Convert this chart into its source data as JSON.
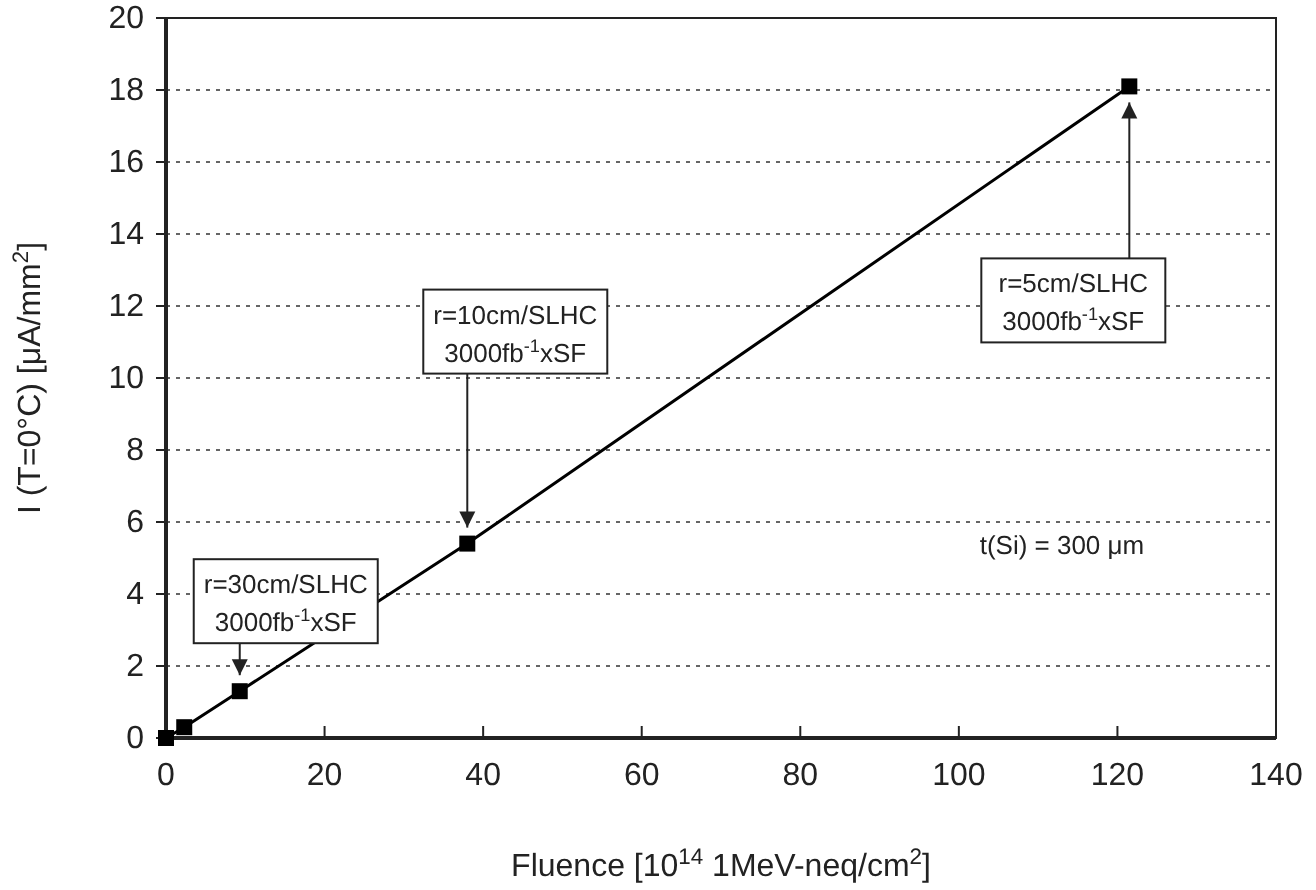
{
  "chart_data": {
    "type": "line",
    "xlabel": "Fluence [10$^{14}$ 1MeV-neq/cm$^{2}$]",
    "ylabel": "I (T=0°C) [μA/mm$^{2}$]",
    "x": [
      0,
      2.3,
      9.3,
      38,
      121.5
    ],
    "series": [
      {
        "color": "#000000",
        "values": [
          0,
          0.3,
          1.3,
          5.4,
          18.1
        ]
      }
    ],
    "xlim": [
      0,
      140
    ],
    "xticks": [
      0,
      20,
      40,
      60,
      80,
      100,
      120,
      140
    ],
    "ylim": [
      0,
      20
    ],
    "yticks": [
      0,
      2,
      4,
      6,
      8,
      10,
      12,
      14,
      16,
      18,
      20
    ],
    "grid": "y",
    "marker": "square",
    "line_style": "solid",
    "annotations": [
      {
        "text": "r=30cm/SLHC\n3000fb$^{-1}$xSF",
        "x": 9.3,
        "y": 1.3
      },
      {
        "text": "r=10cm/SLHC\n3000fb$^{-1}$xSF",
        "x": 38,
        "y": 5.4
      },
      {
        "text": "r=5cm/SLHC\n3000fb$^{-1}$xSF",
        "x": 121.5,
        "y": 18.1
      },
      "t(Si) = 300 μm"
    ]
  }
}
